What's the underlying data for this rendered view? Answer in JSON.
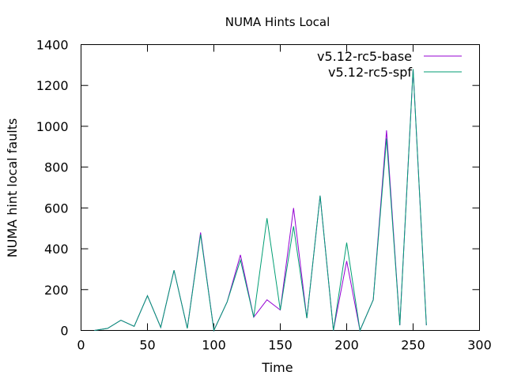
{
  "chart_data": {
    "type": "line",
    "title": "NUMA Hints Local",
    "xlabel": "Time",
    "ylabel": "NUMA hint local faults",
    "xlim": [
      0,
      300
    ],
    "ylim": [
      0,
      1400
    ],
    "xticks": [
      0,
      50,
      100,
      150,
      200,
      250,
      300
    ],
    "yticks": [
      0,
      200,
      400,
      600,
      800,
      1000,
      1200,
      1400
    ],
    "grid": false,
    "legend_position": "top-right",
    "series": [
      {
        "name": "v5.12-rc5-base",
        "color": "#9400d3",
        "x": [
          10,
          20,
          30,
          40,
          50,
          60,
          70,
          80,
          90,
          100,
          110,
          120,
          130,
          140,
          150,
          160,
          170,
          180,
          190,
          200,
          210,
          220,
          230,
          240,
          250,
          260
        ],
        "y": [
          0,
          10,
          50,
          20,
          170,
          15,
          295,
          10,
          480,
          0,
          140,
          370,
          65,
          150,
          100,
          600,
          60,
          660,
          0,
          340,
          0,
          150,
          980,
          25,
          1280,
          25
        ]
      },
      {
        "name": "v5.12-rc5-spf",
        "color": "#009e73",
        "x": [
          10,
          20,
          30,
          40,
          50,
          60,
          70,
          80,
          90,
          100,
          110,
          120,
          130,
          140,
          150,
          160,
          170,
          180,
          190,
          200,
          210,
          220,
          230,
          240,
          250,
          260
        ],
        "y": [
          0,
          10,
          50,
          20,
          170,
          15,
          295,
          10,
          470,
          0,
          140,
          345,
          65,
          550,
          100,
          510,
          60,
          660,
          0,
          430,
          0,
          150,
          940,
          25,
          1280,
          25
        ]
      }
    ]
  }
}
